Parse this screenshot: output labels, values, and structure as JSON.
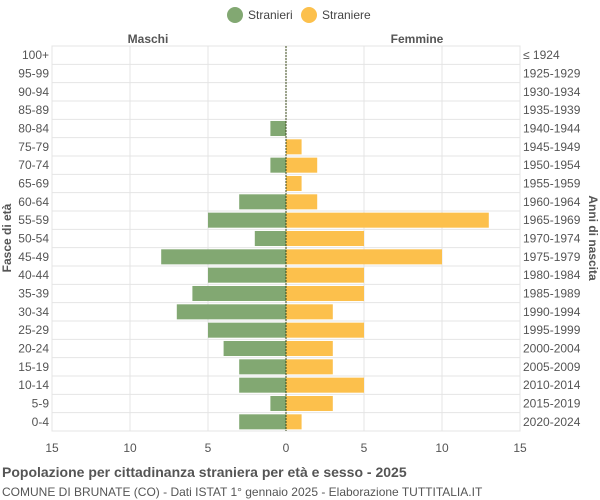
{
  "colors": {
    "male": "#82a872",
    "female": "#fcc04c",
    "grid": "#e4e4e4",
    "axis": "#bbbbbb",
    "center": "#3a4a1a"
  },
  "chart_data": {
    "type": "bar",
    "orientation": "horizontal-pyramid",
    "left_label": "Maschi",
    "right_label": "Femmine",
    "ylabel_left": "Fasce di età",
    "ylabel_right": "Anni di nascita",
    "xlim": [
      -15,
      15
    ],
    "xticks": [
      15,
      10,
      5,
      0,
      5,
      10,
      15
    ],
    "grid": true,
    "legend_position": "top-center",
    "series": [
      {
        "name": "Stranieri",
        "color": "#82a872",
        "side": "left",
        "values": [
          0,
          0,
          0,
          0,
          1,
          0,
          1,
          0,
          3,
          5,
          2,
          8,
          5,
          6,
          7,
          5,
          4,
          3,
          3,
          1,
          3
        ]
      },
      {
        "name": "Straniere",
        "color": "#fcc04c",
        "side": "right",
        "values": [
          0,
          0,
          0,
          0,
          0,
          1,
          2,
          1,
          2,
          13,
          5,
          10,
          5,
          5,
          3,
          5,
          3,
          3,
          5,
          3,
          1
        ]
      }
    ],
    "categories": [
      "100+",
      "95-99",
      "90-94",
      "85-89",
      "80-84",
      "75-79",
      "70-74",
      "65-69",
      "60-64",
      "55-59",
      "50-54",
      "45-49",
      "40-44",
      "35-39",
      "30-34",
      "25-29",
      "20-24",
      "15-19",
      "10-14",
      "5-9",
      "0-4"
    ],
    "birth_years": [
      "≤ 1924",
      "1925-1929",
      "1930-1934",
      "1935-1939",
      "1940-1944",
      "1945-1949",
      "1950-1954",
      "1955-1959",
      "1960-1964",
      "1965-1969",
      "1970-1974",
      "1975-1979",
      "1980-1984",
      "1985-1989",
      "1990-1994",
      "1995-1999",
      "2000-2004",
      "2005-2009",
      "2010-2014",
      "2015-2019",
      "2020-2024"
    ]
  },
  "caption": {
    "title": "Popolazione per cittadinanza straniera per età e sesso - 2025",
    "subtitle": "COMUNE DI BRUNATE (CO) - Dati ISTAT 1° gennaio 2025 - Elaborazione TUTTITALIA.IT"
  }
}
